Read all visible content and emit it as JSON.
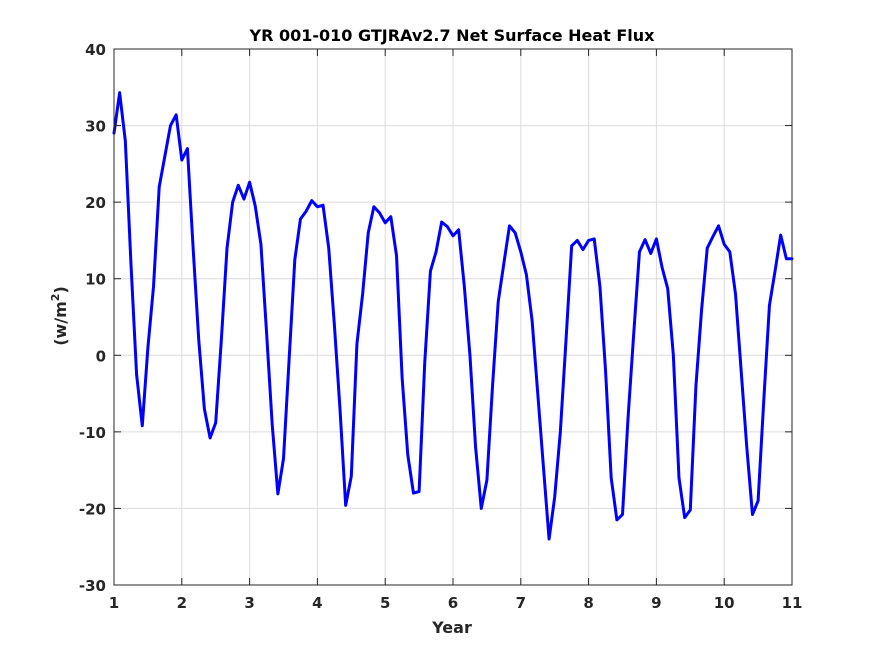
{
  "chart_data": {
    "type": "line",
    "title": "YR 001-010 GTJRAv2.7 Net Surface Heat Flux",
    "xlabel": "Year",
    "ylabel": "(w/m",
    "ylabel_sup": "2",
    "ylabel_end": ")",
    "xlim": [
      1,
      11
    ],
    "ylim": [
      -30,
      40
    ],
    "xticks": [
      1,
      2,
      3,
      4,
      5,
      6,
      7,
      8,
      9,
      10,
      11
    ],
    "yticks": [
      -30,
      -20,
      -10,
      0,
      10,
      20,
      30,
      40
    ],
    "xtick_labels": [
      "1",
      "2",
      "3",
      "4",
      "5",
      "6",
      "7",
      "8",
      "9",
      "10",
      "11"
    ],
    "ytick_labels": [
      "-30",
      "-20",
      "-10",
      "0",
      "10",
      "20",
      "30",
      "40"
    ],
    "grid": true,
    "series": [
      {
        "color": "#0000ff",
        "x": [
          1.0,
          1.083,
          1.167,
          1.25,
          1.333,
          1.417,
          1.5,
          1.583,
          1.667,
          1.75,
          1.833,
          1.917,
          2.0,
          2.083,
          2.167,
          2.25,
          2.333,
          2.417,
          2.5,
          2.583,
          2.667,
          2.75,
          2.833,
          2.917,
          3.0,
          3.083,
          3.167,
          3.25,
          3.333,
          3.417,
          3.5,
          3.583,
          3.667,
          3.75,
          3.833,
          3.917,
          4.0,
          4.083,
          4.167,
          4.25,
          4.333,
          4.417,
          4.5,
          4.583,
          4.667,
          4.75,
          4.833,
          4.917,
          5.0,
          5.083,
          5.167,
          5.25,
          5.333,
          5.417,
          5.5,
          5.583,
          5.667,
          5.75,
          5.833,
          5.917,
          6.0,
          6.083,
          6.167,
          6.25,
          6.333,
          6.417,
          6.5,
          6.583,
          6.667,
          6.75,
          6.833,
          6.917,
          7.0,
          7.083,
          7.167,
          7.25,
          7.333,
          7.417,
          7.5,
          7.583,
          7.667,
          7.75,
          7.833,
          7.917,
          8.0,
          8.083,
          8.167,
          8.25,
          8.333,
          8.417,
          8.5,
          8.583,
          8.667,
          8.75,
          8.833,
          8.917,
          9.0,
          9.083,
          9.167,
          9.25,
          9.333,
          9.417,
          9.5,
          9.583,
          9.667,
          9.75,
          9.833,
          9.917,
          10.0,
          10.083,
          10.167,
          10.25,
          10.333,
          10.417,
          10.5,
          10.583,
          10.667,
          10.75,
          10.833,
          10.917,
          11.0
        ],
        "y": [
          29.0,
          34.3,
          28.0,
          12.0,
          -2.5,
          -9.2,
          1.0,
          9.0,
          22.0,
          26.0,
          30.0,
          31.4,
          25.5,
          27.0,
          14.0,
          2.0,
          -7.0,
          -10.8,
          -8.8,
          2.0,
          14.0,
          20.0,
          22.2,
          20.4,
          22.6,
          19.5,
          14.5,
          3.0,
          -9.0,
          -18.1,
          -13.5,
          -0.5,
          12.5,
          17.8,
          18.8,
          20.2,
          19.4,
          19.6,
          14.0,
          4.0,
          -7.0,
          -19.6,
          -15.8,
          1.5,
          8.0,
          16.0,
          19.4,
          18.6,
          17.3,
          18.1,
          13.0,
          -3.0,
          -13.0,
          -18.0,
          -17.8,
          -1.0,
          11.0,
          13.5,
          17.4,
          16.8,
          15.6,
          16.4,
          9.0,
          0.0,
          -12.0,
          -20.0,
          -16.3,
          -4.0,
          7.0,
          12.0,
          16.9,
          16.0,
          13.5,
          10.5,
          4.5,
          -5.0,
          -14.5,
          -24.0,
          -18.5,
          -10.0,
          2.0,
          14.3,
          15.0,
          13.8,
          15.0,
          15.2,
          9.0,
          -2.0,
          -16.0,
          -21.5,
          -20.8,
          -8.0,
          3.0,
          13.5,
          15.1,
          13.3,
          15.2,
          11.5,
          8.7,
          0.0,
          -16.0,
          -21.2,
          -20.2,
          -4.0,
          6.0,
          14.0,
          15.5,
          16.9,
          14.5,
          13.5,
          8.0,
          -2.0,
          -12.0,
          -20.8,
          -19.0,
          -6.0,
          6.5,
          11.0,
          15.7,
          12.6,
          12.6
        ]
      }
    ]
  }
}
